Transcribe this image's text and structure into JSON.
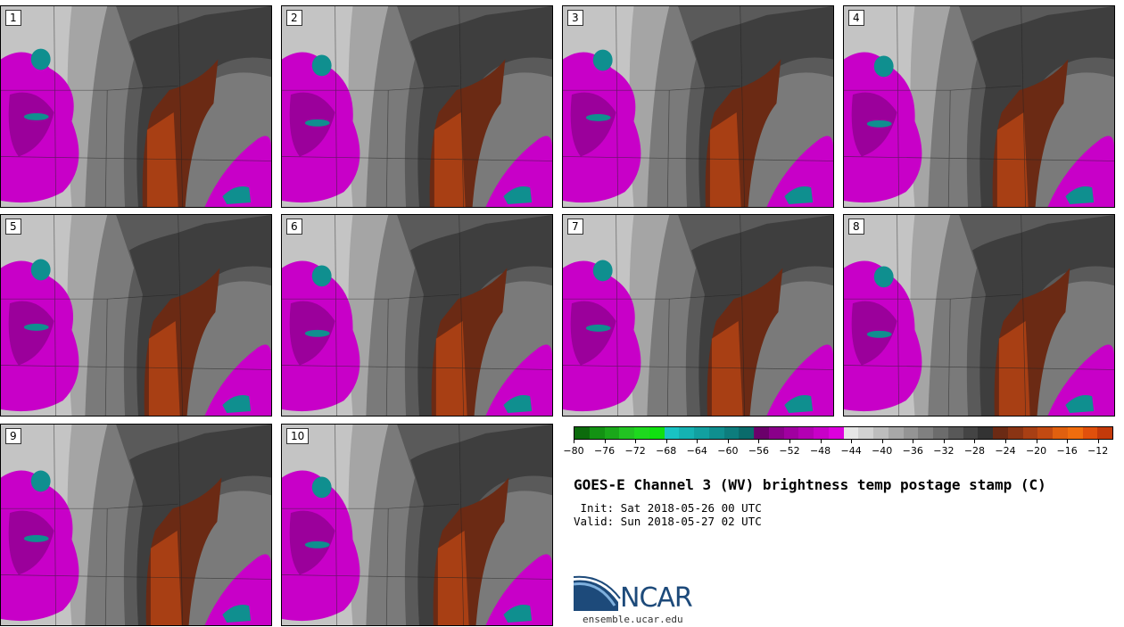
{
  "panels": [
    {
      "label": "1"
    },
    {
      "label": "2"
    },
    {
      "label": "3"
    },
    {
      "label": "4"
    },
    {
      "label": "5"
    },
    {
      "label": "6"
    },
    {
      "label": "7"
    },
    {
      "label": "8"
    },
    {
      "label": "9"
    },
    {
      "label": "10"
    }
  ],
  "colorbar": {
    "colors": [
      "#0c6b0c",
      "#139213",
      "#1aa81a",
      "#22c322",
      "#1ed81e",
      "#10e010",
      "#19c3c3",
      "#15b2b2",
      "#12a0a0",
      "#0f8f8f",
      "#0d7d7d",
      "#0a6b6b",
      "#6b006b",
      "#8a008a",
      "#a000a0",
      "#b300b3",
      "#c800c8",
      "#dd00dd",
      "#e6e6e6",
      "#d2d2d2",
      "#bdbdbd",
      "#a8a8a8",
      "#949494",
      "#808080",
      "#6c6c6c",
      "#585858",
      "#444444",
      "#333333",
      "#6b2a14",
      "#8a3414",
      "#a83f14",
      "#c24a12",
      "#e0600f",
      "#f06d0e",
      "#e0500c",
      "#c43a0a"
    ],
    "ticks": [
      "−80",
      "−76",
      "−72",
      "−68",
      "−64",
      "−60",
      "−56",
      "−52",
      "−48",
      "−44",
      "−40",
      "−36",
      "−32",
      "−28",
      "−24",
      "−20",
      "−16",
      "−12"
    ],
    "tick_values": [
      -80,
      -76,
      -72,
      -68,
      -64,
      -60,
      -56,
      -52,
      -48,
      -44,
      -40,
      -36,
      -32,
      -28,
      -24,
      -20,
      -16,
      -12
    ],
    "min": -80,
    "max": -10
  },
  "title": "GOES-E Channel 3 (WV) brightness temp postage stamp (C)",
  "init": " Init: Sat 2018-05-26 00 UTC",
  "valid": "Valid: Sun 2018-05-27 02 UTC",
  "logo": {
    "text": "NCAR",
    "url": "ensemble.ucar.edu"
  }
}
